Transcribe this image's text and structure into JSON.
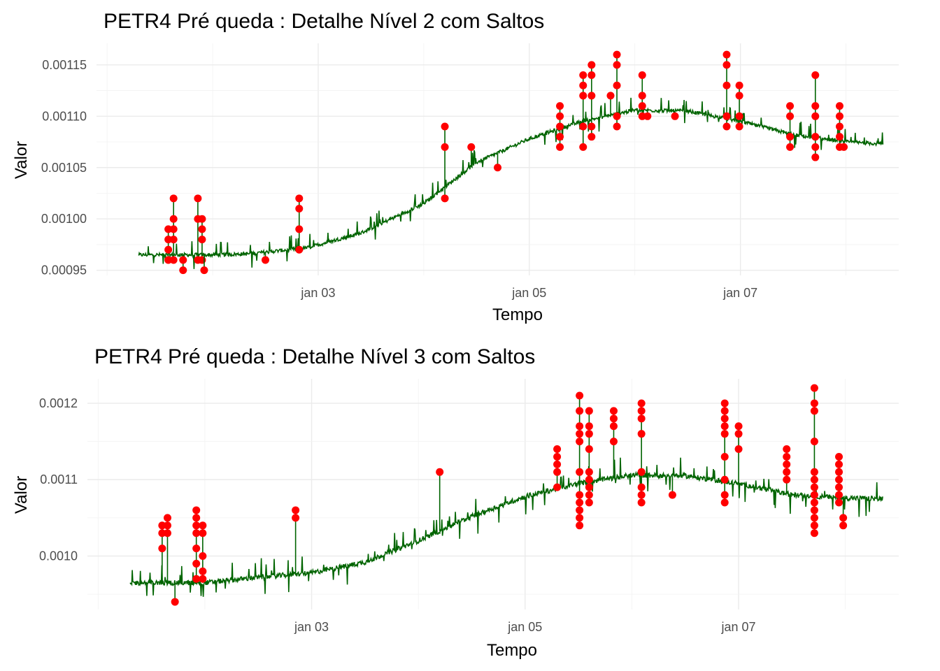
{
  "chart_data": [
    {
      "type": "line",
      "title": "PETR4 Pré queda : Detalhe Nível 2 com Saltos",
      "xlabel": "Tempo",
      "ylabel": "Valor",
      "x_ticks": [
        "jan 03",
        "jan 05",
        "jan 07"
      ],
      "y_ticks": [
        "0.00095",
        "0.00100",
        "0.00105",
        "0.00110",
        "0.00115"
      ],
      "y_tick_values": [
        0.00095,
        0.001,
        0.00105,
        0.0011,
        0.00115
      ],
      "ylim": [
        0.000945,
        0.001171
      ],
      "xlim": [
        0.9,
        8.5
      ],
      "x_tick_positions": [
        3,
        5,
        7
      ],
      "grid": true,
      "line_color": "#006400",
      "jump_color": "#ff0000",
      "series_trend": [
        {
          "x": 1.3,
          "y": 0.000965
        },
        {
          "x": 2.0,
          "y": 0.000965
        },
        {
          "x": 2.35,
          "y": 0.000966
        },
        {
          "x": 2.9,
          "y": 0.000972
        },
        {
          "x": 3.4,
          "y": 0.000986
        },
        {
          "x": 4.0,
          "y": 0.001015
        },
        {
          "x": 4.5,
          "y": 0.001055
        },
        {
          "x": 5.0,
          "y": 0.001078
        },
        {
          "x": 5.5,
          "y": 0.001095
        },
        {
          "x": 6.0,
          "y": 0.001106
        },
        {
          "x": 6.5,
          "y": 0.001105
        },
        {
          "x": 7.0,
          "y": 0.001095
        },
        {
          "x": 7.5,
          "y": 0.001082
        },
        {
          "x": 8.0,
          "y": 0.001075
        },
        {
          "x": 8.35,
          "y": 0.001073
        }
      ],
      "jumps": [
        {
          "x": 1.58,
          "y": [
            0.00096,
            0.00097,
            0.00098,
            0.00099
          ]
        },
        {
          "x": 1.63,
          "y": [
            0.00096,
            0.00098,
            0.00099,
            0.001,
            0.00102
          ]
        },
        {
          "x": 1.72,
          "y": [
            0.00095,
            0.00096
          ]
        },
        {
          "x": 1.86,
          "y": [
            0.00096,
            0.001,
            0.00102
          ]
        },
        {
          "x": 1.9,
          "y": [
            0.00096,
            0.00098,
            0.00099,
            0.001
          ]
        },
        {
          "x": 1.92,
          "y": [
            0.00095
          ]
        },
        {
          "x": 2.5,
          "y": [
            0.00096
          ]
        },
        {
          "x": 2.82,
          "y": [
            0.00097,
            0.00099,
            0.00101,
            0.00102
          ]
        },
        {
          "x": 4.2,
          "y": [
            0.00102,
            0.00107,
            0.00109
          ]
        },
        {
          "x": 4.45,
          "y": [
            0.00107
          ]
        },
        {
          "x": 4.7,
          "y": [
            0.00105
          ]
        },
        {
          "x": 5.29,
          "y": [
            0.00107,
            0.00108,
            0.00109,
            0.0011,
            0.00111
          ]
        },
        {
          "x": 5.51,
          "y": [
            0.00107,
            0.00109,
            0.00112,
            0.00113,
            0.00114
          ]
        },
        {
          "x": 5.59,
          "y": [
            0.00108,
            0.00109,
            0.00112,
            0.00114,
            0.00115
          ]
        },
        {
          "x": 5.77,
          "y": [
            0.00112
          ]
        },
        {
          "x": 5.83,
          "y": [
            0.00109,
            0.0011,
            0.00113,
            0.00115,
            0.00116
          ]
        },
        {
          "x": 6.07,
          "y": [
            0.0011,
            0.00111,
            0.00112,
            0.00114
          ]
        },
        {
          "x": 6.12,
          "y": [
            0.0011
          ]
        },
        {
          "x": 6.38,
          "y": [
            0.0011
          ]
        },
        {
          "x": 6.87,
          "y": [
            0.00109,
            0.0011,
            0.00113,
            0.00115,
            0.00116
          ]
        },
        {
          "x": 6.99,
          "y": [
            0.00109,
            0.0011,
            0.00112,
            0.00113
          ]
        },
        {
          "x": 7.47,
          "y": [
            0.00107,
            0.00108,
            0.0011,
            0.00111
          ]
        },
        {
          "x": 7.71,
          "y": [
            0.00106,
            0.00107,
            0.00108,
            0.0011,
            0.00111,
            0.00114
          ]
        },
        {
          "x": 7.94,
          "y": [
            0.00107,
            0.00108,
            0.00109,
            0.0011,
            0.00111
          ]
        },
        {
          "x": 7.98,
          "y": [
            0.00107
          ]
        }
      ]
    },
    {
      "type": "line",
      "title": "PETR4 Pré queda : Detalhe Nível 3 com Saltos",
      "xlabel": "Tempo",
      "ylabel": "Valor",
      "x_ticks": [
        "jan 03",
        "jan 05",
        "jan 07"
      ],
      "y_ticks": [
        "0.0010",
        "0.0011",
        "0.0012"
      ],
      "y_tick_values": [
        0.001,
        0.0011,
        0.0012
      ],
      "ylim": [
        0.00093,
        0.001232
      ],
      "xlim": [
        0.9,
        8.5
      ],
      "x_tick_positions": [
        3,
        5,
        7
      ],
      "grid": true,
      "line_color": "#006400",
      "jump_color": "#ff0000",
      "series_trend": [
        {
          "x": 1.3,
          "y": 0.000965
        },
        {
          "x": 2.0,
          "y": 0.000965
        },
        {
          "x": 2.5,
          "y": 0.000972
        },
        {
          "x": 3.0,
          "y": 0.000978
        },
        {
          "x": 3.5,
          "y": 0.000992
        },
        {
          "x": 4.0,
          "y": 0.00102
        },
        {
          "x": 4.5,
          "y": 0.001052
        },
        {
          "x": 5.0,
          "y": 0.001078
        },
        {
          "x": 5.5,
          "y": 0.001095
        },
        {
          "x": 6.0,
          "y": 0.001106
        },
        {
          "x": 6.5,
          "y": 0.001105
        },
        {
          "x": 7.0,
          "y": 0.001095
        },
        {
          "x": 7.5,
          "y": 0.00108
        },
        {
          "x": 8.0,
          "y": 0.001076
        },
        {
          "x": 8.35,
          "y": 0.001075
        }
      ],
      "jumps": [
        {
          "x": 1.6,
          "y": [
            0.00101,
            0.00103,
            0.00104
          ]
        },
        {
          "x": 1.65,
          "y": [
            0.00103,
            0.00104,
            0.00105
          ]
        },
        {
          "x": 1.72,
          "y": [
            0.00094
          ]
        },
        {
          "x": 1.92,
          "y": [
            0.00097,
            0.00099,
            0.00101,
            0.00103,
            0.00104,
            0.00105,
            0.00106
          ]
        },
        {
          "x": 1.98,
          "y": [
            0.00097,
            0.00098,
            0.001,
            0.00103,
            0.00104
          ]
        },
        {
          "x": 2.85,
          "y": [
            0.00105,
            0.00106
          ]
        },
        {
          "x": 4.2,
          "y": [
            0.00111
          ]
        },
        {
          "x": 5.3,
          "y": [
            0.00109,
            0.00111,
            0.00112,
            0.00113,
            0.00114
          ]
        },
        {
          "x": 5.51,
          "y": [
            0.00104,
            0.00105,
            0.00106,
            0.00107,
            0.00108,
            0.00111,
            0.00115,
            0.00116,
            0.00117,
            0.00119,
            0.00121
          ]
        },
        {
          "x": 5.6,
          "y": [
            0.00107,
            0.00108,
            0.00109,
            0.0011,
            0.00111,
            0.00114,
            0.00116,
            0.00117,
            0.00119
          ]
        },
        {
          "x": 5.83,
          "y": [
            0.00115,
            0.00117,
            0.00118,
            0.00119
          ]
        },
        {
          "x": 6.09,
          "y": [
            0.00107,
            0.00108,
            0.00109,
            0.00111,
            0.00116,
            0.00118,
            0.00119,
            0.0012
          ]
        },
        {
          "x": 6.38,
          "y": [
            0.00108
          ]
        },
        {
          "x": 6.87,
          "y": [
            0.00107,
            0.00108,
            0.0011,
            0.00113,
            0.00116,
            0.00117,
            0.00118,
            0.00119,
            0.0012
          ]
        },
        {
          "x": 7.0,
          "y": [
            0.00114,
            0.00116,
            0.00117
          ]
        },
        {
          "x": 7.45,
          "y": [
            0.0011,
            0.00111,
            0.00112,
            0.00113,
            0.00114
          ]
        },
        {
          "x": 7.71,
          "y": [
            0.00103,
            0.00104,
            0.00105,
            0.00106,
            0.00107,
            0.00108,
            0.00109,
            0.0011,
            0.00111,
            0.00115,
            0.00119,
            0.0012,
            0.00122
          ]
        },
        {
          "x": 7.94,
          "y": [
            0.00107,
            0.00108,
            0.00109,
            0.0011,
            0.00111,
            0.00112,
            0.00113
          ]
        },
        {
          "x": 7.98,
          "y": [
            0.00104,
            0.00105
          ]
        }
      ]
    }
  ]
}
